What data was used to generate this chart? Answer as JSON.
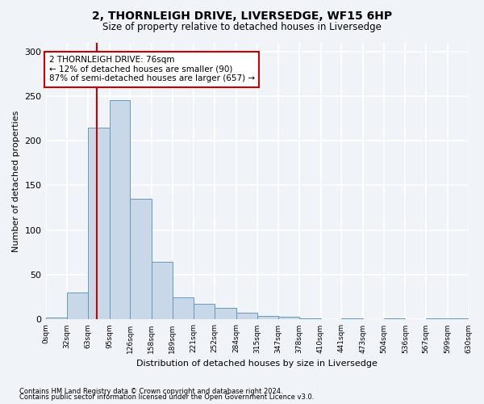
{
  "title": "2, THORNLEIGH DRIVE, LIVERSEDGE, WF15 6HP",
  "subtitle": "Size of property relative to detached houses in Liversedge",
  "xlabel": "Distribution of detached houses by size in Liversedge",
  "ylabel": "Number of detached properties",
  "footnote1": "Contains HM Land Registry data © Crown copyright and database right 2024.",
  "footnote2": "Contains public sector information licensed under the Open Government Licence v3.0.",
  "bar_color": "#c8d8e8",
  "bar_edge_color": "#6699bb",
  "bin_labels": [
    "0sqm",
    "32sqm",
    "63sqm",
    "95sqm",
    "126sqm",
    "158sqm",
    "189sqm",
    "221sqm",
    "252sqm",
    "284sqm",
    "315sqm",
    "347sqm",
    "378sqm",
    "410sqm",
    "441sqm",
    "473sqm",
    "504sqm",
    "536sqm",
    "567sqm",
    "599sqm",
    "630sqm"
  ],
  "bar_values": [
    2,
    30,
    215,
    245,
    135,
    65,
    25,
    18,
    13,
    8,
    4,
    3,
    1,
    0,
    1,
    0,
    1,
    0,
    1,
    1
  ],
  "bin_edges": [
    0,
    32,
    63,
    95,
    126,
    158,
    189,
    221,
    252,
    284,
    315,
    347,
    378,
    410,
    441,
    473,
    504,
    536,
    567,
    599,
    630
  ],
  "ylim": [
    0,
    310
  ],
  "yticks": [
    0,
    50,
    100,
    150,
    200,
    250,
    300
  ],
  "property_size": 76,
  "vline_color": "#cc0000",
  "annotation_text": "2 THORNLEIGH DRIVE: 76sqm\n← 12% of detached houses are smaller (90)\n87% of semi-detached houses are larger (657) →",
  "annotation_box_color": "white",
  "annotation_box_edge_color": "#cc0000",
  "background_color": "#f0f4f8",
  "grid_color": "white"
}
